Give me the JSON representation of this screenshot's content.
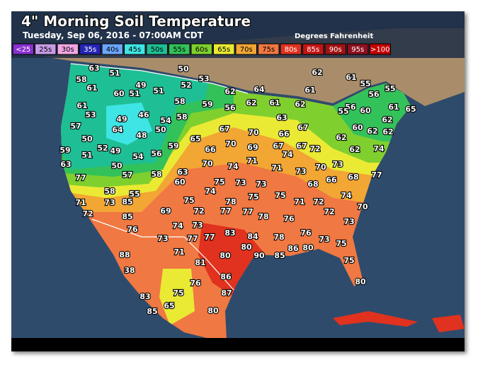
{
  "header": {
    "title": "4\" Morning Soil Temperature",
    "subtitle": "Tuesday, Sep 06, 2016 - 07:00AM CDT",
    "units": "Degrees Fahrenheit"
  },
  "legend": [
    {
      "label": "<25",
      "color": "#8a2fd0"
    },
    {
      "label": "25s",
      "color": "#c79be6"
    },
    {
      "label": "30s",
      "color": "#f2a6e4"
    },
    {
      "label": "35s",
      "color": "#2424b4"
    },
    {
      "label": "40s",
      "color": "#6aa6ff"
    },
    {
      "label": "45s",
      "color": "#3fe4e4"
    },
    {
      "label": "50s",
      "color": "#1fbf95"
    },
    {
      "label": "55s",
      "color": "#33c25a"
    },
    {
      "label": "60s",
      "color": "#7fd02e"
    },
    {
      "label": "65s",
      "color": "#eaea34"
    },
    {
      "label": "70s",
      "color": "#f2a634"
    },
    {
      "label": "75s",
      "color": "#f07842"
    },
    {
      "label": "80s",
      "color": "#e0321e"
    },
    {
      "label": "85s",
      "color": "#c31414"
    },
    {
      "label": "90s",
      "color": "#a11212"
    },
    {
      "label": "95s",
      "color": "#8e1020"
    },
    {
      "label": ">100",
      "color": "#c40000"
    }
  ],
  "stations": [
    63,
    51,
    50,
    53,
    58,
    61,
    60,
    49,
    51,
    51,
    52,
    62,
    64,
    62,
    61,
    55,
    56,
    55,
    61,
    61,
    53,
    49,
    46,
    58,
    59,
    56,
    62,
    61,
    62,
    56,
    55,
    60,
    61,
    65,
    57,
    64,
    48,
    54,
    58,
    50,
    67,
    70,
    66,
    67,
    63,
    62,
    60,
    62,
    62,
    62,
    50,
    52,
    49,
    54,
    56,
    59,
    65,
    66,
    70,
    69,
    67,
    74,
    67,
    72,
    62,
    74,
    59,
    51,
    63,
    50,
    57,
    58,
    70,
    74,
    71,
    71,
    73,
    70,
    73,
    68,
    77,
    77,
    63,
    60,
    75,
    73,
    73,
    68,
    66,
    58,
    55,
    74,
    75,
    75,
    74,
    71,
    73,
    85,
    75,
    78,
    71,
    72,
    72,
    70,
    72,
    69,
    72,
    77,
    77,
    78,
    76,
    85,
    74,
    73,
    83,
    84,
    78,
    76,
    73,
    76,
    73,
    73,
    77,
    77,
    88,
    80,
    80,
    90,
    85,
    86,
    80,
    75,
    71,
    81,
    75,
    38,
    86,
    76,
    80,
    75,
    87,
    83,
    85,
    65,
    80
  ]
}
